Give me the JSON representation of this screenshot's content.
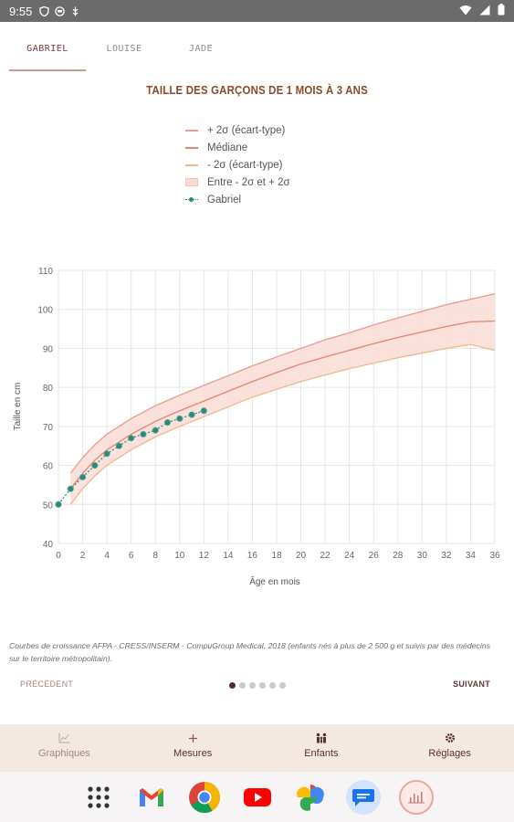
{
  "status_bar": {
    "time": "9:55"
  },
  "tabs": [
    {
      "label": "GABRIEL",
      "active": true
    },
    {
      "label": "LOUISE",
      "active": false
    },
    {
      "label": "JADE",
      "active": false
    }
  ],
  "chart_title": "TAILLE DES GARÇONS DE 1 MOIS À 3 ANS",
  "legend": [
    {
      "label": "+ 2σ (écart-type)",
      "type": "plus"
    },
    {
      "label": "Médiane",
      "type": "med"
    },
    {
      "label": "- 2σ (écart-type)",
      "type": "minus"
    },
    {
      "label": "Entre - 2σ et + 2σ",
      "type": "band"
    },
    {
      "label": "Gabriel",
      "type": "gab"
    }
  ],
  "chart_data": {
    "type": "line",
    "title": "TAILLE DES GARÇONS DE 1 MOIS À 3 ANS",
    "xlabel": "Âge en mois",
    "ylabel": "Taille en cm",
    "xlim": [
      0,
      36
    ],
    "ylim": [
      40,
      110
    ],
    "xticks": [
      0,
      2,
      4,
      6,
      8,
      10,
      12,
      14,
      16,
      18,
      20,
      22,
      24,
      26,
      28,
      30,
      32,
      34,
      36
    ],
    "yticks": [
      40,
      50,
      60,
      70,
      80,
      90,
      100,
      110
    ],
    "grid": true,
    "legend_position": "top",
    "colors": {
      "plus": "#e89a90",
      "median": "#e6826e",
      "minus": "#f0b88a",
      "band": "#fadcd6",
      "gabriel": "#2a8a7a"
    },
    "x": [
      1,
      2,
      3,
      4,
      6,
      8,
      10,
      12,
      14,
      16,
      18,
      20,
      22,
      24,
      26,
      28,
      30,
      32,
      34,
      36
    ],
    "series": [
      {
        "name": "+ 2σ (écart-type)",
        "values": [
          58,
          62,
          65.3,
          68,
          72,
          75.3,
          78,
          80.5,
          83,
          85.5,
          87.8,
          90,
          92.2,
          94,
          96,
          97.8,
          99.5,
          101.2,
          102.6,
          104
        ]
      },
      {
        "name": "Médiane",
        "values": [
          54,
          58,
          61.3,
          64,
          68,
          71.3,
          74,
          76.5,
          79,
          81.5,
          83.8,
          86,
          87.8,
          89.5,
          91.2,
          92.8,
          94.2,
          95.6,
          96.8,
          97
        ]
      },
      {
        "name": "- 2σ (écart-type)",
        "values": [
          50,
          54,
          57.3,
          60,
          64,
          67.3,
          70,
          72.5,
          75,
          77.5,
          79.5,
          81.5,
          83.2,
          84.8,
          86.2,
          87.6,
          88.8,
          90,
          91,
          89.5
        ]
      },
      {
        "name": "Gabriel",
        "x": [
          0,
          1,
          2,
          3,
          4,
          5,
          6,
          7,
          8,
          9,
          10,
          11,
          12
        ],
        "values": [
          50,
          54,
          57,
          60,
          63,
          65,
          67,
          68,
          69,
          71,
          72,
          73,
          74
        ]
      }
    ]
  },
  "source_note": "Courbes de croissance AFPA - CRESS/INSERM - CompuGroup Medical, 2018 (enfants nés à plus de 2 500 g et suivis par des médecins sur le territoire métropolitain).",
  "pager": {
    "prev": "PRÉCÉDENT",
    "next": "SUIVANT",
    "count": 6,
    "active": 0
  },
  "bottom_nav": [
    {
      "label": "Graphiques",
      "icon": "chart-icon",
      "active": true
    },
    {
      "label": "Mesures",
      "icon": "plus-icon",
      "active": false
    },
    {
      "label": "Enfants",
      "icon": "family-icon",
      "active": false
    },
    {
      "label": "Réglages",
      "icon": "gear-icon",
      "active": false
    }
  ],
  "dock": [
    "apps-grid-icon",
    "gmail-icon",
    "chrome-icon",
    "youtube-icon",
    "photos-icon",
    "messages-icon",
    "growth-app-icon"
  ]
}
